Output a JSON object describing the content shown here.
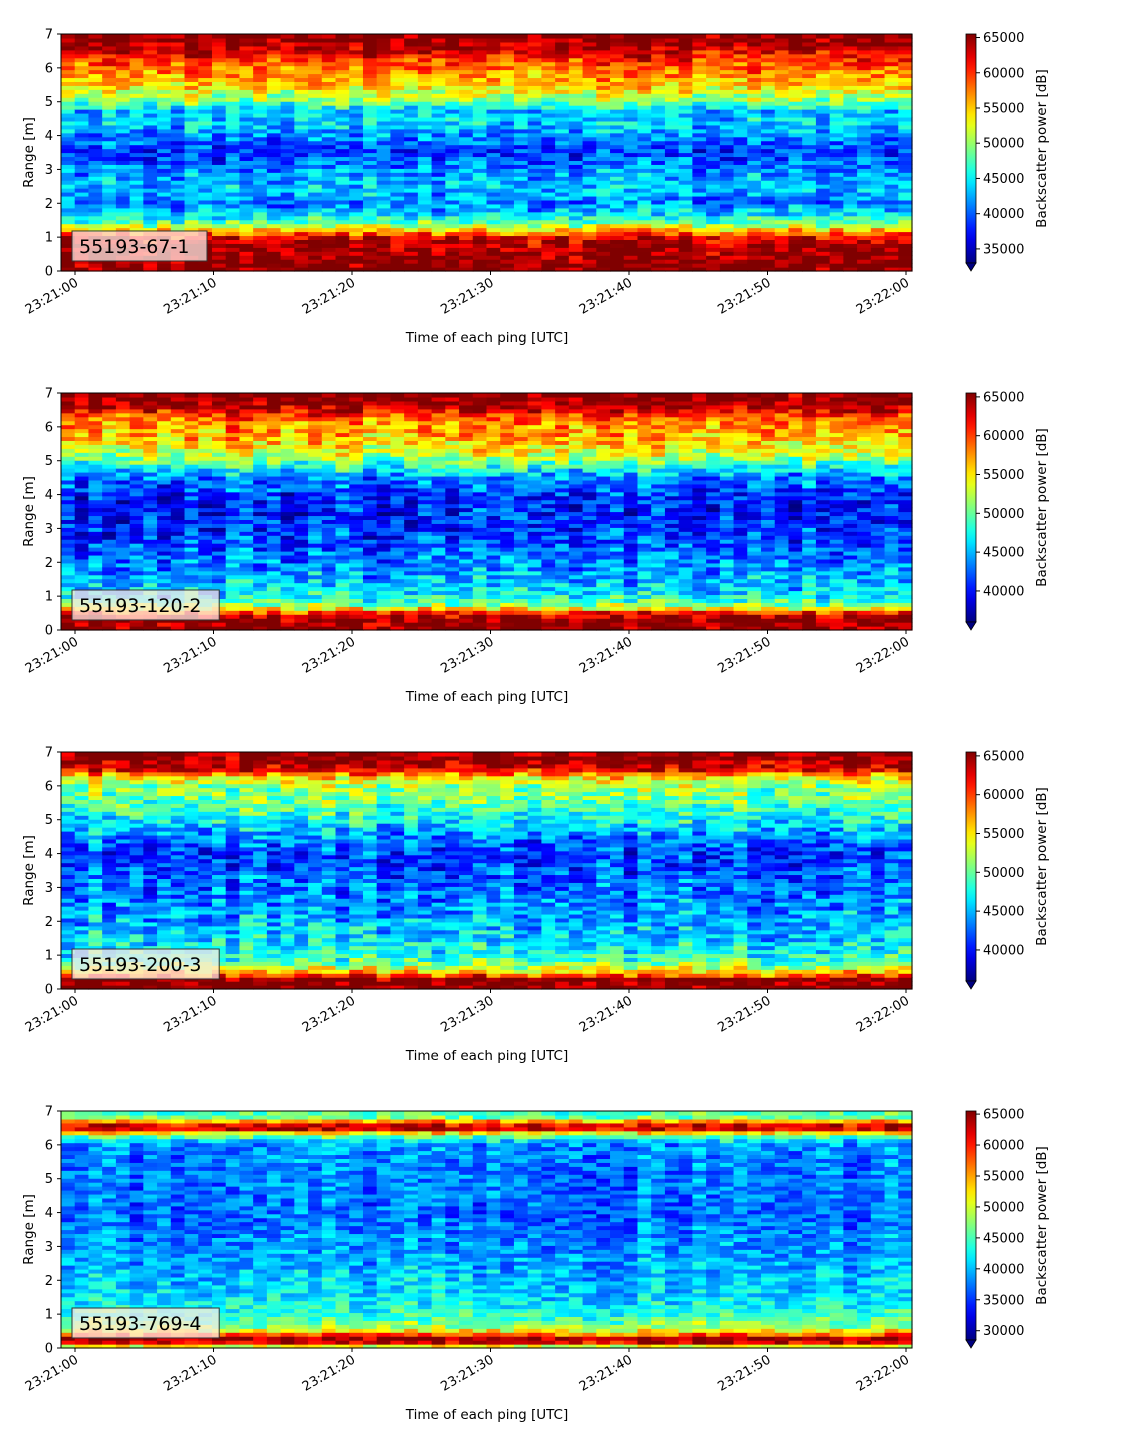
{
  "chart_data": [
    {
      "type": "heatmap",
      "label": "55193-67-1",
      "xlabel": "Time of each ping [UTC]",
      "ylabel": "Range [m]",
      "colorbar_label": "Backscatter power [dB]",
      "colormap": "jet",
      "xlim": [
        "23:21:00",
        "23:22:00"
      ],
      "ylim": [
        0,
        7
      ],
      "clim": [
        33000,
        65500
      ],
      "xticks": [
        "23:21:00",
        "23:21:10",
        "23:21:20",
        "23:21:30",
        "23:21:40",
        "23:21:50",
        "23:22:00"
      ],
      "yticks": [
        0,
        1,
        2,
        3,
        4,
        5,
        6,
        7
      ],
      "cticks": [
        35000,
        40000,
        45000,
        50000,
        55000,
        60000,
        65000
      ],
      "range_profile": [
        [
          0.0,
          65500
        ],
        [
          0.25,
          65500
        ],
        [
          0.7,
          64500
        ],
        [
          1.0,
          62500
        ],
        [
          1.2,
          56000
        ],
        [
          1.4,
          49000
        ],
        [
          1.7,
          44000
        ],
        [
          2.0,
          41000
        ],
        [
          2.5,
          43500
        ],
        [
          3.0,
          41500
        ],
        [
          3.5,
          38500
        ],
        [
          4.0,
          41500
        ],
        [
          4.4,
          44000
        ],
        [
          4.7,
          42500
        ],
        [
          5.0,
          49000
        ],
        [
          5.4,
          53500
        ],
        [
          5.8,
          57000
        ],
        [
          6.2,
          59500
        ],
        [
          6.5,
          62500
        ],
        [
          6.8,
          65500
        ],
        [
          7.0,
          65500
        ]
      ]
    },
    {
      "type": "heatmap",
      "label": "55193-120-2",
      "xlabel": "Time of each ping [UTC]",
      "ylabel": "Range [m]",
      "colorbar_label": "Backscatter power [dB]",
      "colormap": "jet",
      "xlim": [
        "23:21:00",
        "23:22:00"
      ],
      "ylim": [
        0,
        7
      ],
      "clim": [
        36000,
        65500
      ],
      "xticks": [
        "23:21:00",
        "23:21:10",
        "23:21:20",
        "23:21:30",
        "23:21:40",
        "23:21:50",
        "23:22:00"
      ],
      "yticks": [
        0,
        1,
        2,
        3,
        4,
        5,
        6,
        7
      ],
      "cticks": [
        40000,
        45000,
        50000,
        55000,
        60000,
        65000
      ],
      "range_profile": [
        [
          0.0,
          65500
        ],
        [
          0.3,
          65500
        ],
        [
          0.5,
          62000
        ],
        [
          0.7,
          52000
        ],
        [
          1.0,
          47000
        ],
        [
          1.5,
          45000
        ],
        [
          2.0,
          43500
        ],
        [
          2.5,
          42000
        ],
        [
          3.0,
          41000
        ],
        [
          3.5,
          40500
        ],
        [
          4.0,
          41000
        ],
        [
          4.5,
          43500
        ],
        [
          4.8,
          47500
        ],
        [
          5.2,
          53000
        ],
        [
          5.6,
          56000
        ],
        [
          6.0,
          57500
        ],
        [
          6.3,
          59000
        ],
        [
          6.5,
          63000
        ],
        [
          6.8,
          65500
        ],
        [
          7.0,
          65500
        ]
      ]
    },
    {
      "type": "heatmap",
      "label": "55193-200-3",
      "xlabel": "Time of each ping [UTC]",
      "ylabel": "Range [m]",
      "colorbar_label": "Backscatter power [dB]",
      "colormap": "jet",
      "xlim": [
        "23:21:00",
        "23:22:00"
      ],
      "ylim": [
        0,
        7
      ],
      "clim": [
        36000,
        65500
      ],
      "xticks": [
        "23:21:00",
        "23:21:10",
        "23:21:20",
        "23:21:30",
        "23:21:40",
        "23:21:50",
        "23:22:00"
      ],
      "yticks": [
        0,
        1,
        2,
        3,
        4,
        5,
        6,
        7
      ],
      "cticks": [
        40000,
        45000,
        50000,
        55000,
        60000,
        65000
      ],
      "range_profile": [
        [
          0.0,
          65500
        ],
        [
          0.3,
          65500
        ],
        [
          0.45,
          58000
        ],
        [
          0.7,
          51000
        ],
        [
          1.0,
          48000
        ],
        [
          1.5,
          46000
        ],
        [
          2.0,
          45000
        ],
        [
          2.5,
          44000
        ],
        [
          3.0,
          43000
        ],
        [
          3.5,
          42000
        ],
        [
          4.0,
          41500
        ],
        [
          4.5,
          43500
        ],
        [
          5.0,
          47000
        ],
        [
          5.5,
          50000
        ],
        [
          6.0,
          51500
        ],
        [
          6.3,
          56000
        ],
        [
          6.5,
          63000
        ],
        [
          6.8,
          65500
        ],
        [
          7.0,
          65500
        ]
      ]
    },
    {
      "type": "heatmap",
      "label": "55193-769-4",
      "xlabel": "Time of each ping [UTC]",
      "ylabel": "Range [m]",
      "colorbar_label": "Backscatter power [dB]",
      "colormap": "jet",
      "xlim": [
        "23:21:00",
        "23:22:00"
      ],
      "ylim": [
        0,
        7
      ],
      "clim": [
        28500,
        65500
      ],
      "xticks": [
        "23:21:00",
        "23:21:10",
        "23:21:20",
        "23:21:30",
        "23:21:40",
        "23:21:50",
        "23:22:00"
      ],
      "yticks": [
        0,
        1,
        2,
        3,
        4,
        5,
        6,
        7
      ],
      "cticks": [
        30000,
        35000,
        40000,
        45000,
        50000,
        55000,
        60000,
        65000
      ],
      "range_profile": [
        [
          0.0,
          44000
        ],
        [
          0.15,
          62000
        ],
        [
          0.28,
          65500
        ],
        [
          0.4,
          58000
        ],
        [
          0.6,
          48000
        ],
        [
          1.0,
          44000
        ],
        [
          1.5,
          41500
        ],
        [
          2.0,
          40500
        ],
        [
          3.0,
          38500
        ],
        [
          4.0,
          37000
        ],
        [
          5.0,
          37500
        ],
        [
          6.0,
          38500
        ],
        [
          6.2,
          43000
        ],
        [
          6.35,
          52000
        ],
        [
          6.5,
          64500
        ],
        [
          6.65,
          60000
        ],
        [
          6.8,
          47000
        ],
        [
          7.0,
          44000
        ]
      ]
    }
  ]
}
